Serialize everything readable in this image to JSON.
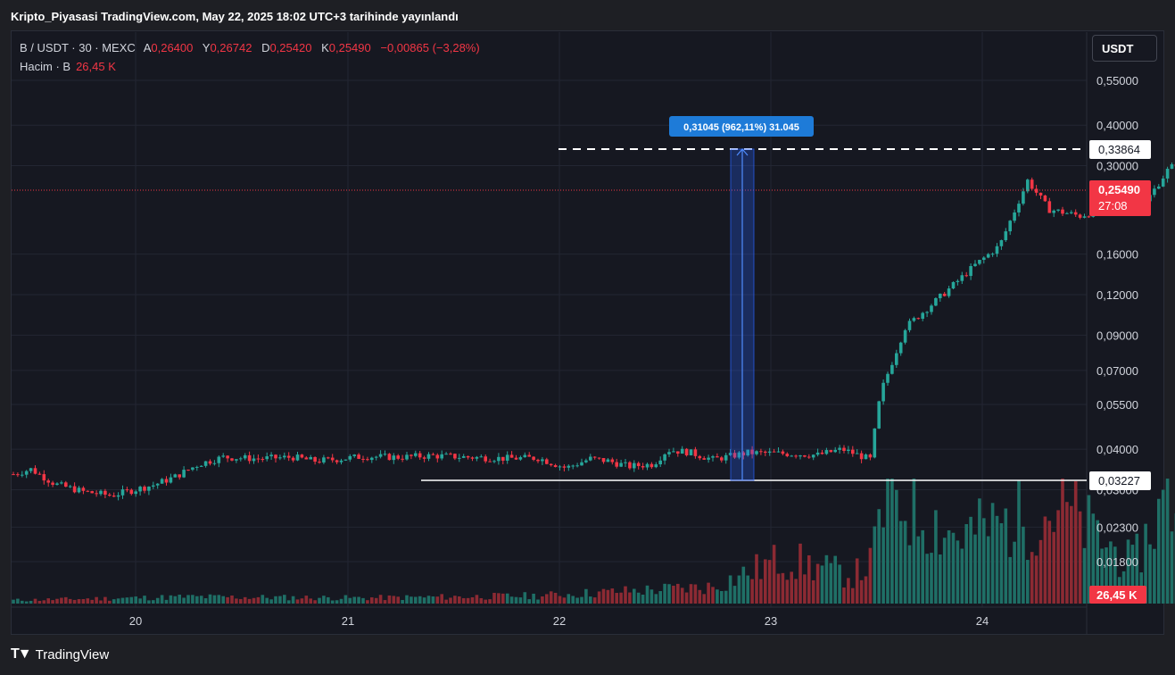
{
  "publish_bar": "Kripto_Piyasasi TradingView.com, May 22, 2025 18:02 UTC+3 tarihinde yayınlandı",
  "legend": {
    "symbol": "B / USDT · 30 · MEXC",
    "open_key": "A",
    "open": "0,26400",
    "high_key": "Y",
    "high": "0,26742",
    "low_key": "D",
    "low": "0,25420",
    "close_key": "K",
    "close": "0,25490",
    "change": "−0,00865 (−3,28%)",
    "volume_label": "Hacim · B",
    "volume_value": "26,45 K"
  },
  "currency_button": "USDT",
  "price_axis": {
    "ticks": [
      "0,55000",
      "0,40000",
      "0,30000",
      "0,16000",
      "0,12000",
      "0,09000",
      "0,07000",
      "0,05500",
      "0,04000",
      "0,03000",
      "0,02300",
      "0,01800"
    ],
    "range_high_label": "0,33864",
    "range_low_label": "0,03227",
    "last_price": "0,25490",
    "countdown": "27:08",
    "volume_badge": "26,45 K"
  },
  "time_axis": {
    "ticks": [
      "20",
      "21",
      "22",
      "23",
      "24"
    ]
  },
  "measure_label": "0,31045 (962,11%) 31.045",
  "colors": {
    "up": "#26a69a",
    "down": "#f23645",
    "measure": "#2962ff",
    "measure_label_bg": "#1e7bd8"
  },
  "footer": {
    "brand": "TradingView",
    "logo_icon": "tradingview-logo-icon"
  },
  "chart_data": {
    "type": "candlestick",
    "scale": "log",
    "symbol": "B/USDT",
    "interval": "30",
    "price_ticks": [
      0.55,
      0.4,
      0.3,
      0.16,
      0.12,
      0.09,
      0.07,
      0.055,
      0.04,
      0.03,
      0.023,
      0.018
    ],
    "x_ticks": [
      "20",
      "21",
      "22",
      "23",
      "24"
    ],
    "ohlc_path": [
      [
        0,
        0.0335
      ],
      [
        0.5,
        0.0347
      ],
      [
        1.2,
        0.0312
      ],
      [
        2,
        0.0296
      ],
      [
        2.8,
        0.0288
      ],
      [
        3.3,
        0.0297
      ],
      [
        4,
        0.031
      ],
      [
        4.6,
        0.0328
      ],
      [
        5.3,
        0.036
      ],
      [
        6,
        0.0378
      ],
      [
        7,
        0.0374
      ],
      [
        8,
        0.0378
      ],
      [
        8.6,
        0.0368
      ],
      [
        9.2,
        0.0372
      ],
      [
        10,
        0.038
      ],
      [
        11,
        0.0378
      ],
      [
        12,
        0.0382
      ],
      [
        13,
        0.0378
      ],
      [
        14,
        0.0375
      ],
      [
        15,
        0.0376
      ],
      [
        15.8,
        0.035
      ],
      [
        16.5,
        0.0374
      ],
      [
        17,
        0.0368
      ],
      [
        17.6,
        0.0354
      ],
      [
        18.3,
        0.036
      ],
      [
        18.7,
        0.0398
      ],
      [
        19.3,
        0.0392
      ],
      [
        20,
        0.0372
      ],
      [
        21,
        0.039
      ],
      [
        22,
        0.0388
      ],
      [
        23,
        0.0384
      ],
      [
        23.7,
        0.04
      ],
      [
        24.5,
        0.0372
      ],
      [
        24.8,
        0.06
      ],
      [
        25.5,
        0.095
      ],
      [
        26.5,
        0.118
      ],
      [
        27.5,
        0.148
      ],
      [
        28.2,
        0.17
      ],
      [
        29,
        0.27
      ],
      [
        29.6,
        0.22
      ],
      [
        30.5,
        0.21
      ],
      [
        31.5,
        0.225
      ],
      [
        32.3,
        0.225
      ],
      [
        33,
        0.29
      ],
      [
        33.5,
        0.32
      ],
      [
        34.2,
        0.305
      ],
      [
        35,
        0.29
      ],
      [
        36,
        0.29
      ],
      [
        36.8,
        0.2549
      ]
    ],
    "volume_path": [
      [
        0,
        0.03
      ],
      [
        5,
        0.06
      ],
      [
        10,
        0.05
      ],
      [
        15,
        0.07
      ],
      [
        20,
        0.15
      ],
      [
        22,
        0.4
      ],
      [
        24,
        0.25
      ],
      [
        24.5,
        0.35
      ],
      [
        25,
        1.0
      ],
      [
        27,
        0.6
      ],
      [
        30,
        0.85
      ],
      [
        32,
        0.35
      ],
      [
        33,
        0.95
      ],
      [
        34,
        0.65
      ],
      [
        36,
        0.7
      ],
      [
        36.8,
        0.45
      ]
    ],
    "range_high": 0.33864,
    "range_low": 0.03227,
    "last_price": 0.2549,
    "last_volume": "26,45 K",
    "measurement": {
      "price_change": 0.31045,
      "percent": "962,11%",
      "ticks": "31.045"
    }
  }
}
